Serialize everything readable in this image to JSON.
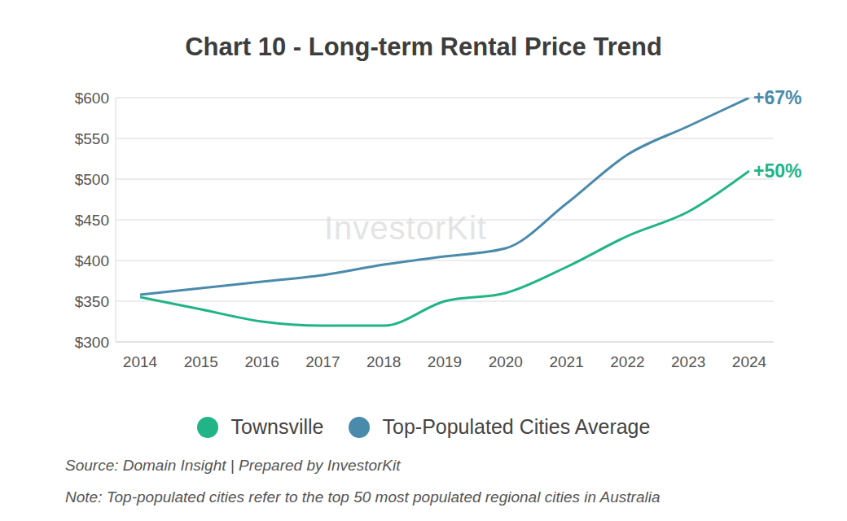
{
  "chart_data": {
    "type": "line",
    "title": "Chart 10 - Long-term Rental Price Trend",
    "x": [
      2014,
      2015,
      2016,
      2017,
      2018,
      2019,
      2020,
      2021,
      2022,
      2023,
      2024
    ],
    "xlim": [
      2014,
      2024
    ],
    "xticks": [
      2014,
      2015,
      2016,
      2017,
      2018,
      2019,
      2020,
      2021,
      2022,
      2023,
      2024
    ],
    "ylim": [
      300,
      600
    ],
    "yticks": [
      {
        "value": 300,
        "label": "$300"
      },
      {
        "value": 350,
        "label": "$350"
      },
      {
        "value": 400,
        "label": "$400"
      },
      {
        "value": 450,
        "label": "$450"
      },
      {
        "value": 500,
        "label": "$500"
      },
      {
        "value": 550,
        "label": "$550"
      },
      {
        "value": 600,
        "label": "$600"
      }
    ],
    "grid": true,
    "series": [
      {
        "name": "Townsville",
        "color": "#20b486",
        "values": [
          355,
          340,
          325,
          320,
          320,
          350,
          360,
          392,
          430,
          460,
          510
        ]
      },
      {
        "name": "Top-Populated Cities Average",
        "color": "#4a8aab",
        "values": [
          358,
          366,
          374,
          382,
          395,
          405,
          415,
          470,
          530,
          565,
          600
        ]
      }
    ],
    "annotations": [
      {
        "text": "+50%",
        "series": "Townsville"
      },
      {
        "text": "+67%",
        "series": "Top-Populated Cities Average"
      }
    ],
    "watermark": "InvestorKit",
    "source": "Source: Domain Insight | Prepared by InvestorKit",
    "note": "Note: Top-populated cities refer to the top 50 most populated regional cities in Australia"
  }
}
